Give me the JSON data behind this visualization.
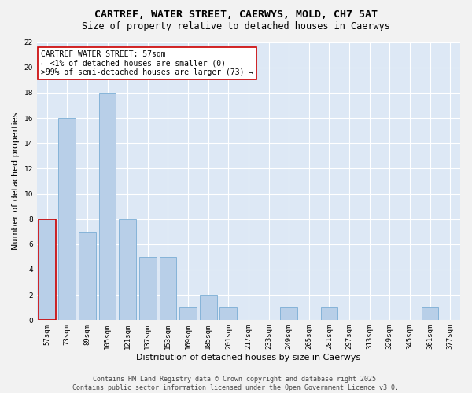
{
  "title1": "CARTREF, WATER STREET, CAERWYS, MOLD, CH7 5AT",
  "title2": "Size of property relative to detached houses in Caerwys",
  "xlabel": "Distribution of detached houses by size in Caerwys",
  "ylabel": "Number of detached properties",
  "categories": [
    "57sqm",
    "73sqm",
    "89sqm",
    "105sqm",
    "121sqm",
    "137sqm",
    "153sqm",
    "169sqm",
    "185sqm",
    "201sqm",
    "217sqm",
    "233sqm",
    "249sqm",
    "265sqm",
    "281sqm",
    "297sqm",
    "313sqm",
    "329sqm",
    "345sqm",
    "361sqm",
    "377sqm"
  ],
  "values": [
    8,
    16,
    7,
    18,
    8,
    5,
    5,
    1,
    2,
    1,
    0,
    0,
    1,
    0,
    1,
    0,
    0,
    0,
    0,
    1,
    0
  ],
  "bar_color": "#b8cfe8",
  "bar_edge_color": "#7aadd4",
  "highlight_edge_color": "#cc0000",
  "annotation_text": "CARTREF WATER STREET: 57sqm\n← <1% of detached houses are smaller (0)\n>99% of semi-detached houses are larger (73) →",
  "annotation_box_color": "#ffffff",
  "annotation_box_edge": "#cc0000",
  "ylim": [
    0,
    22
  ],
  "yticks": [
    0,
    2,
    4,
    6,
    8,
    10,
    12,
    14,
    16,
    18,
    20,
    22
  ],
  "background_color": "#dde8f5",
  "grid_color": "#ffffff",
  "fig_background": "#f2f2f2",
  "footer_text": "Contains HM Land Registry data © Crown copyright and database right 2025.\nContains public sector information licensed under the Open Government Licence v3.0.",
  "title_fontsize": 9.5,
  "subtitle_fontsize": 8.5,
  "axis_label_fontsize": 8,
  "tick_fontsize": 6.5,
  "annotation_fontsize": 7
}
